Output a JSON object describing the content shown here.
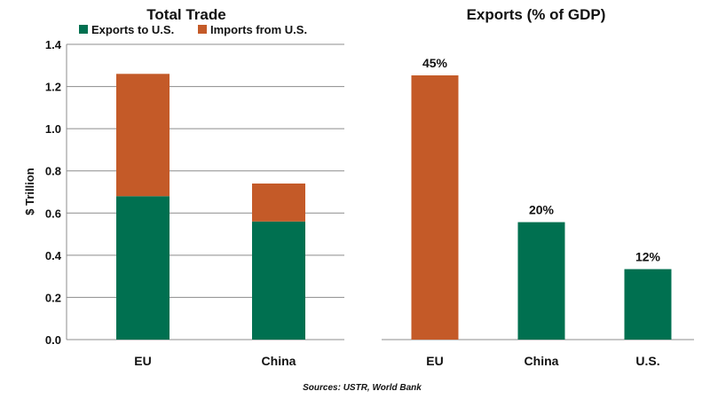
{
  "colors": {
    "exports_green": "#007050",
    "imports_orange": "#c45a28"
  },
  "chart_data": [
    {
      "type": "bar",
      "stacked": true,
      "title": "Total Trade",
      "ylabel": "$ Trillion",
      "ylim": [
        0,
        1.4
      ],
      "yticks": [
        "0.0",
        "0.2",
        "0.4",
        "0.6",
        "0.8",
        "1.0",
        "1.2",
        "1.4"
      ],
      "grid": true,
      "legend_position": "top",
      "categories": [
        "EU",
        "China"
      ],
      "series": [
        {
          "name": "Exports to U.S.",
          "color": "#007050",
          "values": [
            0.68,
            0.56
          ]
        },
        {
          "name": "Imports from U.S.",
          "color": "#c45a28",
          "values": [
            0.58,
            0.18
          ]
        }
      ]
    },
    {
      "type": "bar",
      "title": "Exports (% of GDP)",
      "grid": false,
      "categories": [
        "EU",
        "China",
        "U.S."
      ],
      "values": [
        45,
        20,
        12
      ],
      "data_labels": [
        "45%",
        "20%",
        "12%"
      ],
      "colors": [
        "#c45a28",
        "#007050",
        "#007050"
      ]
    }
  ],
  "source": "Sources: USTR,  World Bank"
}
